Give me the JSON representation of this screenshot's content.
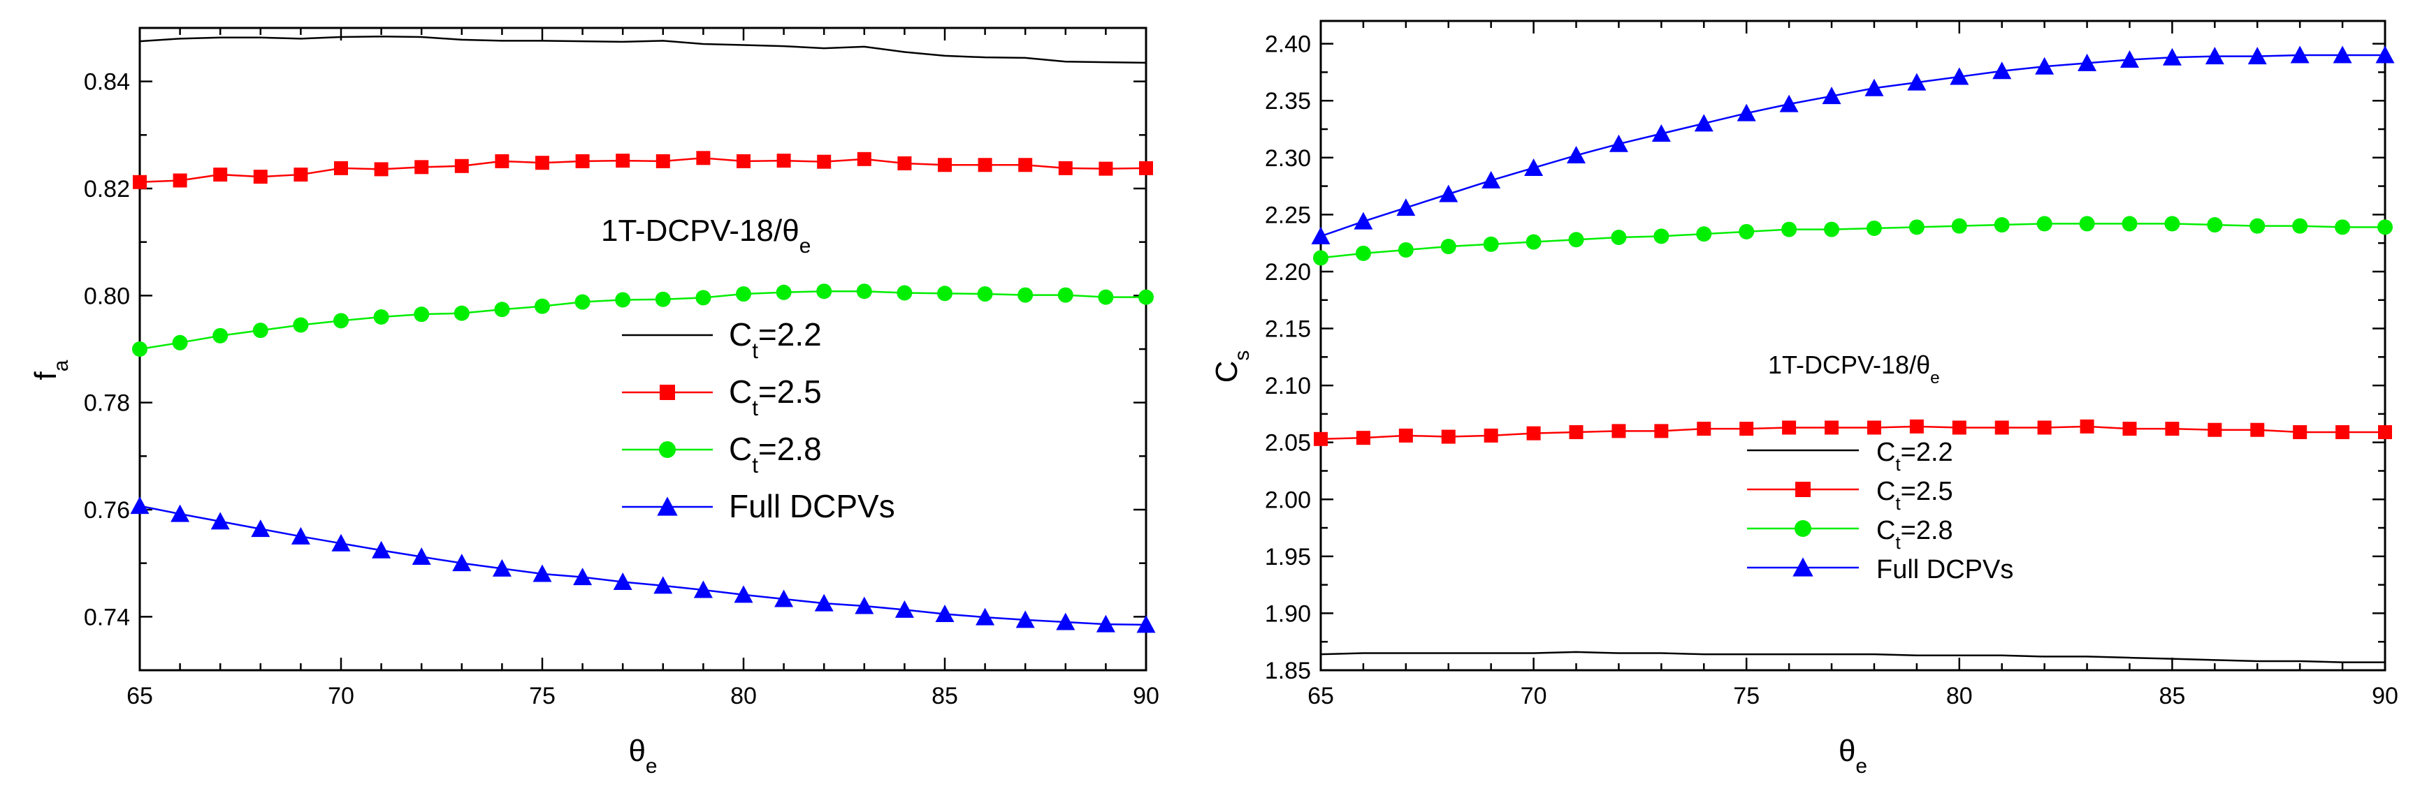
{
  "chart_data": [
    {
      "type": "line",
      "title": "1T-DCPV-18/θe",
      "title_parts": {
        "main": "1T-DCPV-18/θ",
        "sub": "e"
      },
      "xlabel": {
        "main": "θ",
        "sub": "e"
      },
      "ylabel": {
        "main": "f",
        "sub": "a"
      },
      "xlim": [
        65,
        90
      ],
      "ylim": [
        0.73,
        0.85
      ],
      "x_ticks": [
        65,
        70,
        75,
        80,
        85,
        90
      ],
      "x_tick_labels": [
        "65",
        "70",
        "75",
        "80",
        "85",
        "90"
      ],
      "y_ticks": [
        0.74,
        0.76,
        0.78,
        0.8,
        0.82,
        0.84
      ],
      "y_tick_labels": [
        "0.74",
        "0.76",
        "0.78",
        "0.80",
        "0.82",
        "0.84"
      ],
      "legend_position": "center-right",
      "x": [
        65,
        66,
        67,
        68,
        69,
        70,
        71,
        72,
        73,
        74,
        75,
        76,
        77,
        78,
        79,
        80,
        81,
        82,
        83,
        84,
        85,
        86,
        87,
        88,
        89,
        90
      ],
      "series": [
        {
          "name": "Ct=2.2",
          "label_main": "C",
          "label_sub": "t",
          "label_rest": "=2.2",
          "color": "#000000",
          "marker": "none",
          "values": [
            0.8475,
            0.848,
            0.8482,
            0.8482,
            0.848,
            0.8483,
            0.8484,
            0.8483,
            0.8478,
            0.8476,
            0.8476,
            0.8475,
            0.8474,
            0.8476,
            0.847,
            0.8468,
            0.8466,
            0.8462,
            0.8465,
            0.8455,
            0.8448,
            0.8445,
            0.8444,
            0.8437,
            0.8436,
            0.8435
          ]
        },
        {
          "name": "Ct=2.5",
          "label_main": "C",
          "label_sub": "t",
          "label_rest": "=2.5",
          "color": "#ff0000",
          "marker": "square",
          "values": [
            0.8212,
            0.8215,
            0.8226,
            0.8222,
            0.8226,
            0.8238,
            0.8236,
            0.824,
            0.8242,
            0.8251,
            0.8248,
            0.8251,
            0.8252,
            0.8251,
            0.8257,
            0.8251,
            0.8252,
            0.825,
            0.8255,
            0.8247,
            0.8244,
            0.8244,
            0.8244,
            0.8238,
            0.8237,
            0.8238
          ]
        },
        {
          "name": "Ct=2.8",
          "label_main": "C",
          "label_sub": "t",
          "label_rest": "=2.8",
          "color": "#00ee00",
          "marker": "circle",
          "values": [
            0.79,
            0.7912,
            0.7925,
            0.7935,
            0.7945,
            0.7953,
            0.796,
            0.7965,
            0.7967,
            0.7974,
            0.798,
            0.7988,
            0.7992,
            0.7993,
            0.7996,
            0.8003,
            0.8006,
            0.8008,
            0.8008,
            0.8005,
            0.8004,
            0.8003,
            0.8001,
            0.8001,
            0.7997,
            0.7997
          ]
        },
        {
          "name": "Full DCPVs",
          "label_main": "Full DCPVs",
          "label_sub": "",
          "label_rest": "",
          "color": "#0000ff",
          "marker": "triangle",
          "values": [
            0.7607,
            0.7592,
            0.7578,
            0.7564,
            0.755,
            0.7537,
            0.7524,
            0.7512,
            0.75,
            0.749,
            0.748,
            0.7474,
            0.7465,
            0.7458,
            0.745,
            0.7441,
            0.7433,
            0.7425,
            0.742,
            0.7413,
            0.7405,
            0.7399,
            0.7394,
            0.739,
            0.7386,
            0.7385
          ]
        }
      ]
    },
    {
      "type": "line",
      "title": "1T-DCPV-18/θe",
      "title_parts": {
        "main": "1T-DCPV-18/θ",
        "sub": "e"
      },
      "xlabel": {
        "main": "θ",
        "sub": "e"
      },
      "ylabel": {
        "main": "C",
        "sub": "s"
      },
      "xlim": [
        65,
        90
      ],
      "ylim": [
        1.85,
        2.42
      ],
      "x_ticks": [
        65,
        70,
        75,
        80,
        85,
        90
      ],
      "x_tick_labels": [
        "65",
        "70",
        "75",
        "80",
        "85",
        "90"
      ],
      "y_ticks": [
        1.85,
        1.9,
        1.95,
        2.0,
        2.05,
        2.1,
        2.15,
        2.2,
        2.25,
        2.3,
        2.35,
        2.4
      ],
      "y_tick_labels": [
        "1.85",
        "1.90",
        "1.95",
        "2.00",
        "2.05",
        "2.10",
        "2.15",
        "2.20",
        "2.25",
        "2.30",
        "2.35",
        "2.40"
      ],
      "legend_position": "bottom-center",
      "x": [
        65,
        66,
        67,
        68,
        69,
        70,
        71,
        72,
        73,
        74,
        75,
        76,
        77,
        78,
        79,
        80,
        81,
        82,
        83,
        84,
        85,
        86,
        87,
        88,
        89,
        90
      ],
      "series": [
        {
          "name": "Ct=2.2",
          "label_main": "C",
          "label_sub": "t",
          "label_rest": "=2.2",
          "color": "#000000",
          "marker": "none",
          "values": [
            1.864,
            1.865,
            1.865,
            1.865,
            1.865,
            1.865,
            1.866,
            1.865,
            1.865,
            1.864,
            1.864,
            1.864,
            1.864,
            1.864,
            1.863,
            1.863,
            1.863,
            1.862,
            1.862,
            1.861,
            1.86,
            1.859,
            1.858,
            1.858,
            1.857,
            1.857
          ]
        },
        {
          "name": "Ct=2.5",
          "label_main": "C",
          "label_sub": "t",
          "label_rest": "=2.5",
          "color": "#ff0000",
          "marker": "square",
          "values": [
            2.053,
            2.054,
            2.056,
            2.055,
            2.056,
            2.058,
            2.059,
            2.06,
            2.06,
            2.062,
            2.062,
            2.063,
            2.063,
            2.063,
            2.064,
            2.063,
            2.063,
            2.063,
            2.064,
            2.062,
            2.062,
            2.061,
            2.061,
            2.059,
            2.059,
            2.059
          ]
        },
        {
          "name": "Ct=2.8",
          "label_main": "C",
          "label_sub": "t",
          "label_rest": "=2.8",
          "color": "#00ee00",
          "marker": "circle",
          "values": [
            2.212,
            2.216,
            2.219,
            2.222,
            2.224,
            2.226,
            2.228,
            2.23,
            2.231,
            2.233,
            2.235,
            2.237,
            2.237,
            2.238,
            2.239,
            2.24,
            2.241,
            2.242,
            2.242,
            2.242,
            2.242,
            2.241,
            2.24,
            2.24,
            2.239,
            2.239
          ]
        },
        {
          "name": "Full DCPVs",
          "label_main": "Full DCPVs",
          "label_sub": "",
          "label_rest": "",
          "color": "#0000ff",
          "marker": "triangle",
          "values": [
            2.231,
            2.244,
            2.256,
            2.268,
            2.28,
            2.291,
            2.302,
            2.312,
            2.321,
            2.33,
            2.339,
            2.347,
            2.354,
            2.361,
            2.366,
            2.371,
            2.376,
            2.38,
            2.383,
            2.386,
            2.388,
            2.389,
            2.389,
            2.39,
            2.39,
            2.39
          ]
        }
      ]
    }
  ]
}
